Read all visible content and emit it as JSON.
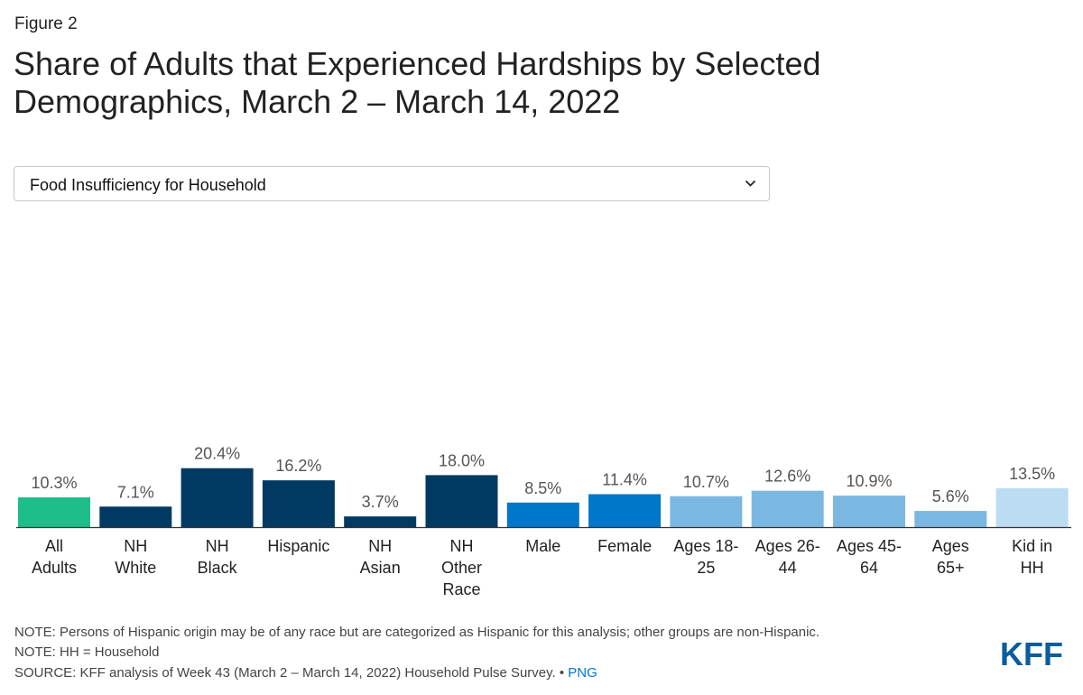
{
  "figure_label": "Figure 2",
  "title_lines": [
    "Share of Adults that Experienced Hardships by Selected",
    "Demographics, March 2 – March 14, 2022"
  ],
  "dropdown": {
    "selected": "Food Insufficiency for Household"
  },
  "chart_data": {
    "type": "bar",
    "title": "Share of Adults that Experienced Hardships by Selected Demographics, March 2 – March 14, 2022",
    "categories": [
      [
        "All",
        "Adults"
      ],
      [
        "NH",
        "White"
      ],
      [
        "NH",
        "Black"
      ],
      [
        "Hispanic"
      ],
      [
        "NH",
        "Asian"
      ],
      [
        "NH",
        "Other",
        "Race"
      ],
      [
        "Male"
      ],
      [
        "Female"
      ],
      [
        "Ages 18-",
        "25"
      ],
      [
        "Ages 26-",
        "44"
      ],
      [
        "Ages 45-",
        "64"
      ],
      [
        "Ages",
        "65+"
      ],
      [
        "Kid in",
        "HH"
      ]
    ],
    "values": [
      10.3,
      7.1,
      20.4,
      16.2,
      3.7,
      18.0,
      8.5,
      11.4,
      10.7,
      12.6,
      10.9,
      5.6,
      13.5
    ],
    "value_labels": [
      "10.3%",
      "7.1%",
      "20.4%",
      "16.2%",
      "3.7%",
      "18.0%",
      "8.5%",
      "11.4%",
      "10.7%",
      "12.6%",
      "10.9%",
      "5.6%",
      "13.5%"
    ],
    "colors": [
      "#1ebd8a",
      "#003a63",
      "#003a63",
      "#003a63",
      "#003a63",
      "#003a63",
      "#0077c8",
      "#0077c8",
      "#7ab8e2",
      "#7ab8e2",
      "#7ab8e2",
      "#7ab8e2",
      "#bcdcf2"
    ],
    "ylim": [
      0,
      100
    ],
    "grid": false,
    "legend": "none"
  },
  "notes": {
    "note1": "NOTE: Persons of Hispanic origin may be of any race but are categorized as Hispanic for this analysis; other groups are non-Hispanic.",
    "note2": "NOTE: HH = Household",
    "source": "SOURCE: KFF analysis of Week 43 (March 2 – March 14, 2022) Household Pulse Survey. •",
    "png_link": "PNG"
  },
  "logo": {
    "text": "KFF",
    "color": "#0a5c9e"
  }
}
